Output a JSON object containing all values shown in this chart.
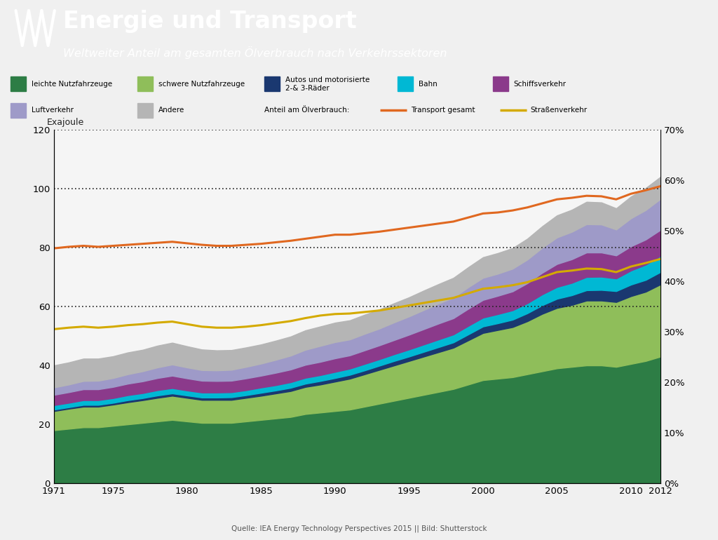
{
  "title": "Energie und Transport",
  "subtitle": "Weltweiter Anteil am gesamten Ölverbrauch nach Verkehrssektoren",
  "header_color": "#4a7c59",
  "source": "Quelle: IEA Energy Technology Perspectives 2015 || Bild: Shutterstock",
  "years": [
    1971,
    1972,
    1973,
    1974,
    1975,
    1976,
    1977,
    1978,
    1979,
    1980,
    1981,
    1982,
    1983,
    1984,
    1985,
    1986,
    1987,
    1988,
    1989,
    1990,
    1991,
    1992,
    1993,
    1994,
    1995,
    1996,
    1997,
    1998,
    1999,
    2000,
    2001,
    2002,
    2003,
    2004,
    2005,
    2006,
    2007,
    2008,
    2009,
    2010,
    2011,
    2012
  ],
  "leichte": [
    18.0,
    18.5,
    19.0,
    19.0,
    19.5,
    20.0,
    20.5,
    21.0,
    21.5,
    21.0,
    20.5,
    20.5,
    20.5,
    21.0,
    21.5,
    22.0,
    22.5,
    23.5,
    24.0,
    24.5,
    25.0,
    26.0,
    27.0,
    28.0,
    29.0,
    30.0,
    31.0,
    32.0,
    33.5,
    35.0,
    35.5,
    36.0,
    37.0,
    38.0,
    39.0,
    39.5,
    40.0,
    40.0,
    39.5,
    40.5,
    41.5,
    43.0
  ],
  "schwere": [
    6.5,
    6.8,
    7.0,
    7.0,
    7.2,
    7.5,
    7.7,
    8.0,
    8.2,
    8.0,
    7.8,
    7.8,
    7.8,
    8.0,
    8.2,
    8.5,
    8.8,
    9.2,
    9.5,
    10.0,
    10.5,
    11.0,
    11.5,
    12.0,
    12.5,
    13.0,
    13.5,
    14.0,
    15.0,
    16.0,
    16.5,
    17.0,
    18.0,
    19.5,
    20.5,
    21.0,
    22.0,
    22.0,
    22.0,
    23.0,
    23.5,
    24.5
  ],
  "autos": [
    0.5,
    0.5,
    0.6,
    0.6,
    0.6,
    0.7,
    0.7,
    0.8,
    0.8,
    0.8,
    0.8,
    0.8,
    0.9,
    0.9,
    1.0,
    1.0,
    1.1,
    1.1,
    1.2,
    1.2,
    1.3,
    1.3,
    1.4,
    1.5,
    1.5,
    1.6,
    1.7,
    1.8,
    2.0,
    2.2,
    2.3,
    2.5,
    2.7,
    2.9,
    3.1,
    3.3,
    3.5,
    3.6,
    3.7,
    3.9,
    4.0,
    4.2
  ],
  "bahn": [
    1.5,
    1.5,
    1.6,
    1.6,
    1.6,
    1.7,
    1.7,
    1.8,
    1.8,
    1.7,
    1.7,
    1.7,
    1.7,
    1.7,
    1.8,
    1.8,
    1.9,
    2.0,
    2.0,
    2.1,
    2.1,
    2.2,
    2.2,
    2.3,
    2.4,
    2.5,
    2.6,
    2.7,
    2.9,
    3.0,
    3.1,
    3.2,
    3.4,
    3.7,
    4.0,
    4.2,
    4.5,
    4.5,
    4.3,
    4.8,
    5.2,
    5.5
  ],
  "schiff": [
    3.5,
    3.6,
    3.7,
    3.7,
    3.8,
    3.9,
    4.0,
    4.1,
    4.2,
    4.1,
    4.0,
    3.9,
    3.9,
    4.0,
    4.0,
    4.2,
    4.3,
    4.4,
    4.5,
    4.6,
    4.5,
    4.6,
    4.7,
    4.8,
    5.0,
    5.2,
    5.4,
    5.5,
    5.8,
    6.0,
    6.2,
    6.4,
    6.8,
    7.3,
    7.8,
    8.0,
    8.3,
    8.2,
    7.8,
    8.2,
    8.5,
    8.8
  ],
  "luft": [
    2.5,
    2.6,
    2.8,
    2.9,
    3.0,
    3.2,
    3.4,
    3.6,
    3.8,
    3.7,
    3.6,
    3.6,
    3.7,
    3.9,
    4.1,
    4.4,
    4.7,
    5.1,
    5.4,
    5.5,
    5.4,
    5.6,
    5.7,
    6.0,
    6.2,
    6.5,
    6.8,
    7.0,
    7.3,
    7.5,
    7.5,
    7.7,
    8.0,
    8.5,
    9.0,
    9.3,
    9.6,
    9.5,
    8.8,
    9.5,
    10.0,
    10.5
  ],
  "andere": [
    7.5,
    7.5,
    7.6,
    7.5,
    7.4,
    7.4,
    7.3,
    7.4,
    7.4,
    7.2,
    7.0,
    6.8,
    6.7,
    6.6,
    6.5,
    6.5,
    6.5,
    6.6,
    6.6,
    6.6,
    6.5,
    6.5,
    6.5,
    6.5,
    6.5,
    6.6,
    6.6,
    6.7,
    6.8,
    7.0,
    7.0,
    7.0,
    7.1,
    7.3,
    7.5,
    7.5,
    7.6,
    7.5,
    7.2,
    7.4,
    7.5,
    7.5
  ],
  "transport_pct": [
    0.465,
    0.468,
    0.47,
    0.468,
    0.47,
    0.472,
    0.474,
    0.476,
    0.478,
    0.475,
    0.472,
    0.47,
    0.47,
    0.472,
    0.474,
    0.477,
    0.48,
    0.484,
    0.488,
    0.492,
    0.492,
    0.495,
    0.498,
    0.502,
    0.506,
    0.51,
    0.514,
    0.518,
    0.526,
    0.534,
    0.536,
    0.54,
    0.546,
    0.554,
    0.562,
    0.565,
    0.569,
    0.568,
    0.562,
    0.573,
    0.58,
    0.588
  ],
  "strassen_pct": [
    0.305,
    0.308,
    0.31,
    0.308,
    0.31,
    0.313,
    0.315,
    0.318,
    0.32,
    0.315,
    0.31,
    0.308,
    0.308,
    0.31,
    0.313,
    0.317,
    0.321,
    0.327,
    0.332,
    0.335,
    0.336,
    0.339,
    0.342,
    0.347,
    0.352,
    0.357,
    0.362,
    0.367,
    0.376,
    0.385,
    0.388,
    0.392,
    0.398,
    0.408,
    0.418,
    0.421,
    0.425,
    0.424,
    0.418,
    0.429,
    0.436,
    0.444
  ],
  "color_leichte": "#2d7d45",
  "color_schwere": "#8fbe5a",
  "color_autos": "#1a3870",
  "color_bahn": "#00b8d4",
  "color_schiff": "#8B3A8B",
  "color_luft": "#9e9ac8",
  "color_andere": "#b5b5b5",
  "color_transport": "#e06820",
  "color_strassen": "#d4aa00",
  "bg_color": "#f5f5f5",
  "fig_bg": "#f0f0f0"
}
